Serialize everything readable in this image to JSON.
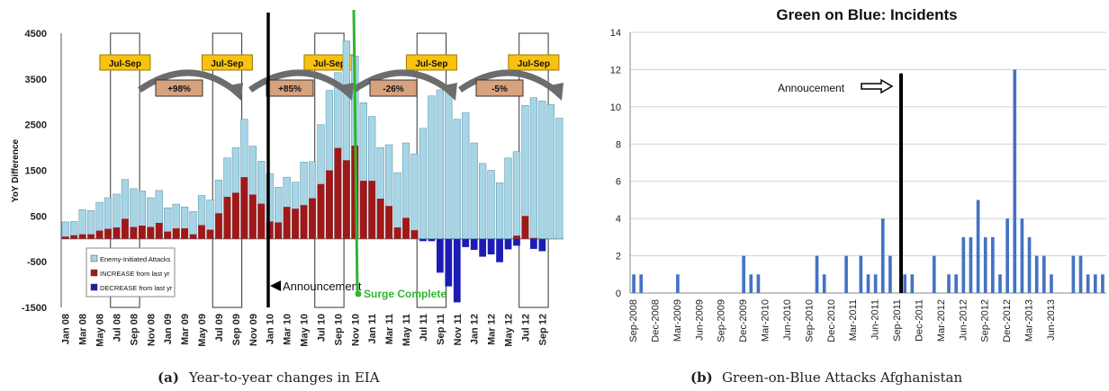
{
  "chart_data": [
    {
      "type": "bar",
      "title": "",
      "ylabel": "YoY Difference",
      "ylim": [
        -1500,
        4500
      ],
      "yticks": [
        -1500,
        -500,
        500,
        1500,
        2500,
        3500,
        4500
      ],
      "xtick_labels": [
        "Jan 08",
        "Mar 08",
        "May 08",
        "Jul 08",
        "Sep 08",
        "Nov 08",
        "Jan 09",
        "Mar 09",
        "May 09",
        "Jul 09",
        "Sep 09",
        "Nov 09",
        "Jan 10",
        "Mar 10",
        "May 10",
        "Jul 10",
        "Sep 10",
        "Nov 10",
        "Jan 11",
        "Mar 11",
        "May 11",
        "Jul 11",
        "Sep 11",
        "Nov 11",
        "Jan 12",
        "Mar 12",
        "May 12",
        "Jul 12",
        "Sep 12"
      ],
      "series": [
        {
          "name": "Enemy-Initiated Attacks",
          "color": "#a6d5e6",
          "values": [
            370,
            380,
            640,
            620,
            800,
            900,
            980,
            1300,
            1100,
            1050,
            900,
            1060,
            680,
            760,
            700,
            600,
            950,
            850,
            1290,
            1770,
            2000,
            2620,
            2030,
            1700,
            1430,
            1130,
            1350,
            1240,
            1680,
            1690,
            2500,
            3250,
            3640,
            4330,
            4000,
            2980,
            2680,
            2000,
            2060,
            1450,
            2100,
            1860,
            2420,
            3130,
            3260,
            3230,
            2620,
            2760,
            2100,
            1650,
            1500,
            1230,
            1770,
            1910,
            2920,
            3090,
            3020,
            2940,
            2640
          ]
        },
        {
          "name": "INCREASE from last yr",
          "color": "#a01818",
          "values": [
            50,
            80,
            100,
            100,
            180,
            220,
            250,
            440,
            260,
            290,
            260,
            350,
            160,
            230,
            230,
            100,
            300,
            200,
            560,
            920,
            1010,
            1350,
            970,
            770,
            380,
            360,
            700,
            660,
            740,
            890,
            1200,
            1500,
            1990,
            1720,
            2040,
            1270,
            1270,
            880,
            720,
            250,
            460,
            190,
            0,
            0,
            0,
            0,
            0,
            0,
            0,
            0,
            0,
            0,
            0,
            70,
            500,
            20,
            0,
            0,
            0
          ]
        },
        {
          "name": "DECREASE from last yr",
          "color": "#1c1cb4",
          "values": [
            0,
            0,
            0,
            0,
            0,
            0,
            0,
            0,
            0,
            0,
            0,
            0,
            0,
            0,
            0,
            0,
            0,
            0,
            0,
            0,
            0,
            0,
            0,
            0,
            0,
            0,
            0,
            0,
            0,
            0,
            0,
            0,
            0,
            0,
            0,
            0,
            0,
            0,
            0,
            0,
            0,
            0,
            -50,
            -50,
            -740,
            -1040,
            -1390,
            -180,
            -240,
            -390,
            -340,
            -510,
            -230,
            -150,
            0,
            -220,
            -270,
            0,
            0
          ]
        }
      ],
      "annotations": {
        "quarters": [
          "Jul-Sep",
          "Jul-Sep",
          "Jul-Sep",
          "Jul-Sep",
          "Jul-Sep"
        ],
        "changes": [
          "+98%",
          "+85%",
          "-26%",
          "-5%"
        ],
        "announcement": "Announcement",
        "surge": "Surge Complete"
      },
      "legend_position": "bottom-left",
      "caption_label": "(a)",
      "caption_text": "Year-to-year changes in EIA"
    },
    {
      "type": "bar",
      "title": "Green on Blue: Incidents",
      "ylim": [
        0,
        14
      ],
      "yticks": [
        0,
        2,
        4,
        6,
        8,
        10,
        12,
        14
      ],
      "xtick_labels": [
        "Sep-2008",
        "Dec-2008",
        "Mar-2009",
        "Jun-2009",
        "Sep-2009",
        "Dec-2009",
        "Mar-2010",
        "Jun-2010",
        "Sep-2010",
        "Dec-2010",
        "Mar-2011",
        "Jun-2011",
        "Sep-2011",
        "Dec-2011",
        "Mar-2012",
        "Jun-2012",
        "Sep-2012",
        "Dec-2012",
        "Mar-2013",
        "Jun-2013"
      ],
      "color": "#4472c4",
      "values": [
        1,
        1,
        0,
        0,
        0,
        0,
        1,
        0,
        0,
        0,
        0,
        0,
        0,
        0,
        0,
        2,
        1,
        1,
        0,
        0,
        0,
        0,
        0,
        0,
        0,
        2,
        1,
        0,
        0,
        2,
        0,
        2,
        1,
        1,
        4,
        2,
        0,
        1,
        1,
        0,
        0,
        2,
        0,
        1,
        1,
        3,
        3,
        5,
        3,
        3,
        1,
        4,
        12,
        4,
        3,
        2,
        2,
        1,
        0,
        0,
        2,
        2,
        1,
        1,
        1
      ],
      "annotation": "Annoucement",
      "grid": "horizontal",
      "caption_label": "(b)",
      "caption_text": "Green-on-Blue Attacks Afghanistan"
    }
  ]
}
